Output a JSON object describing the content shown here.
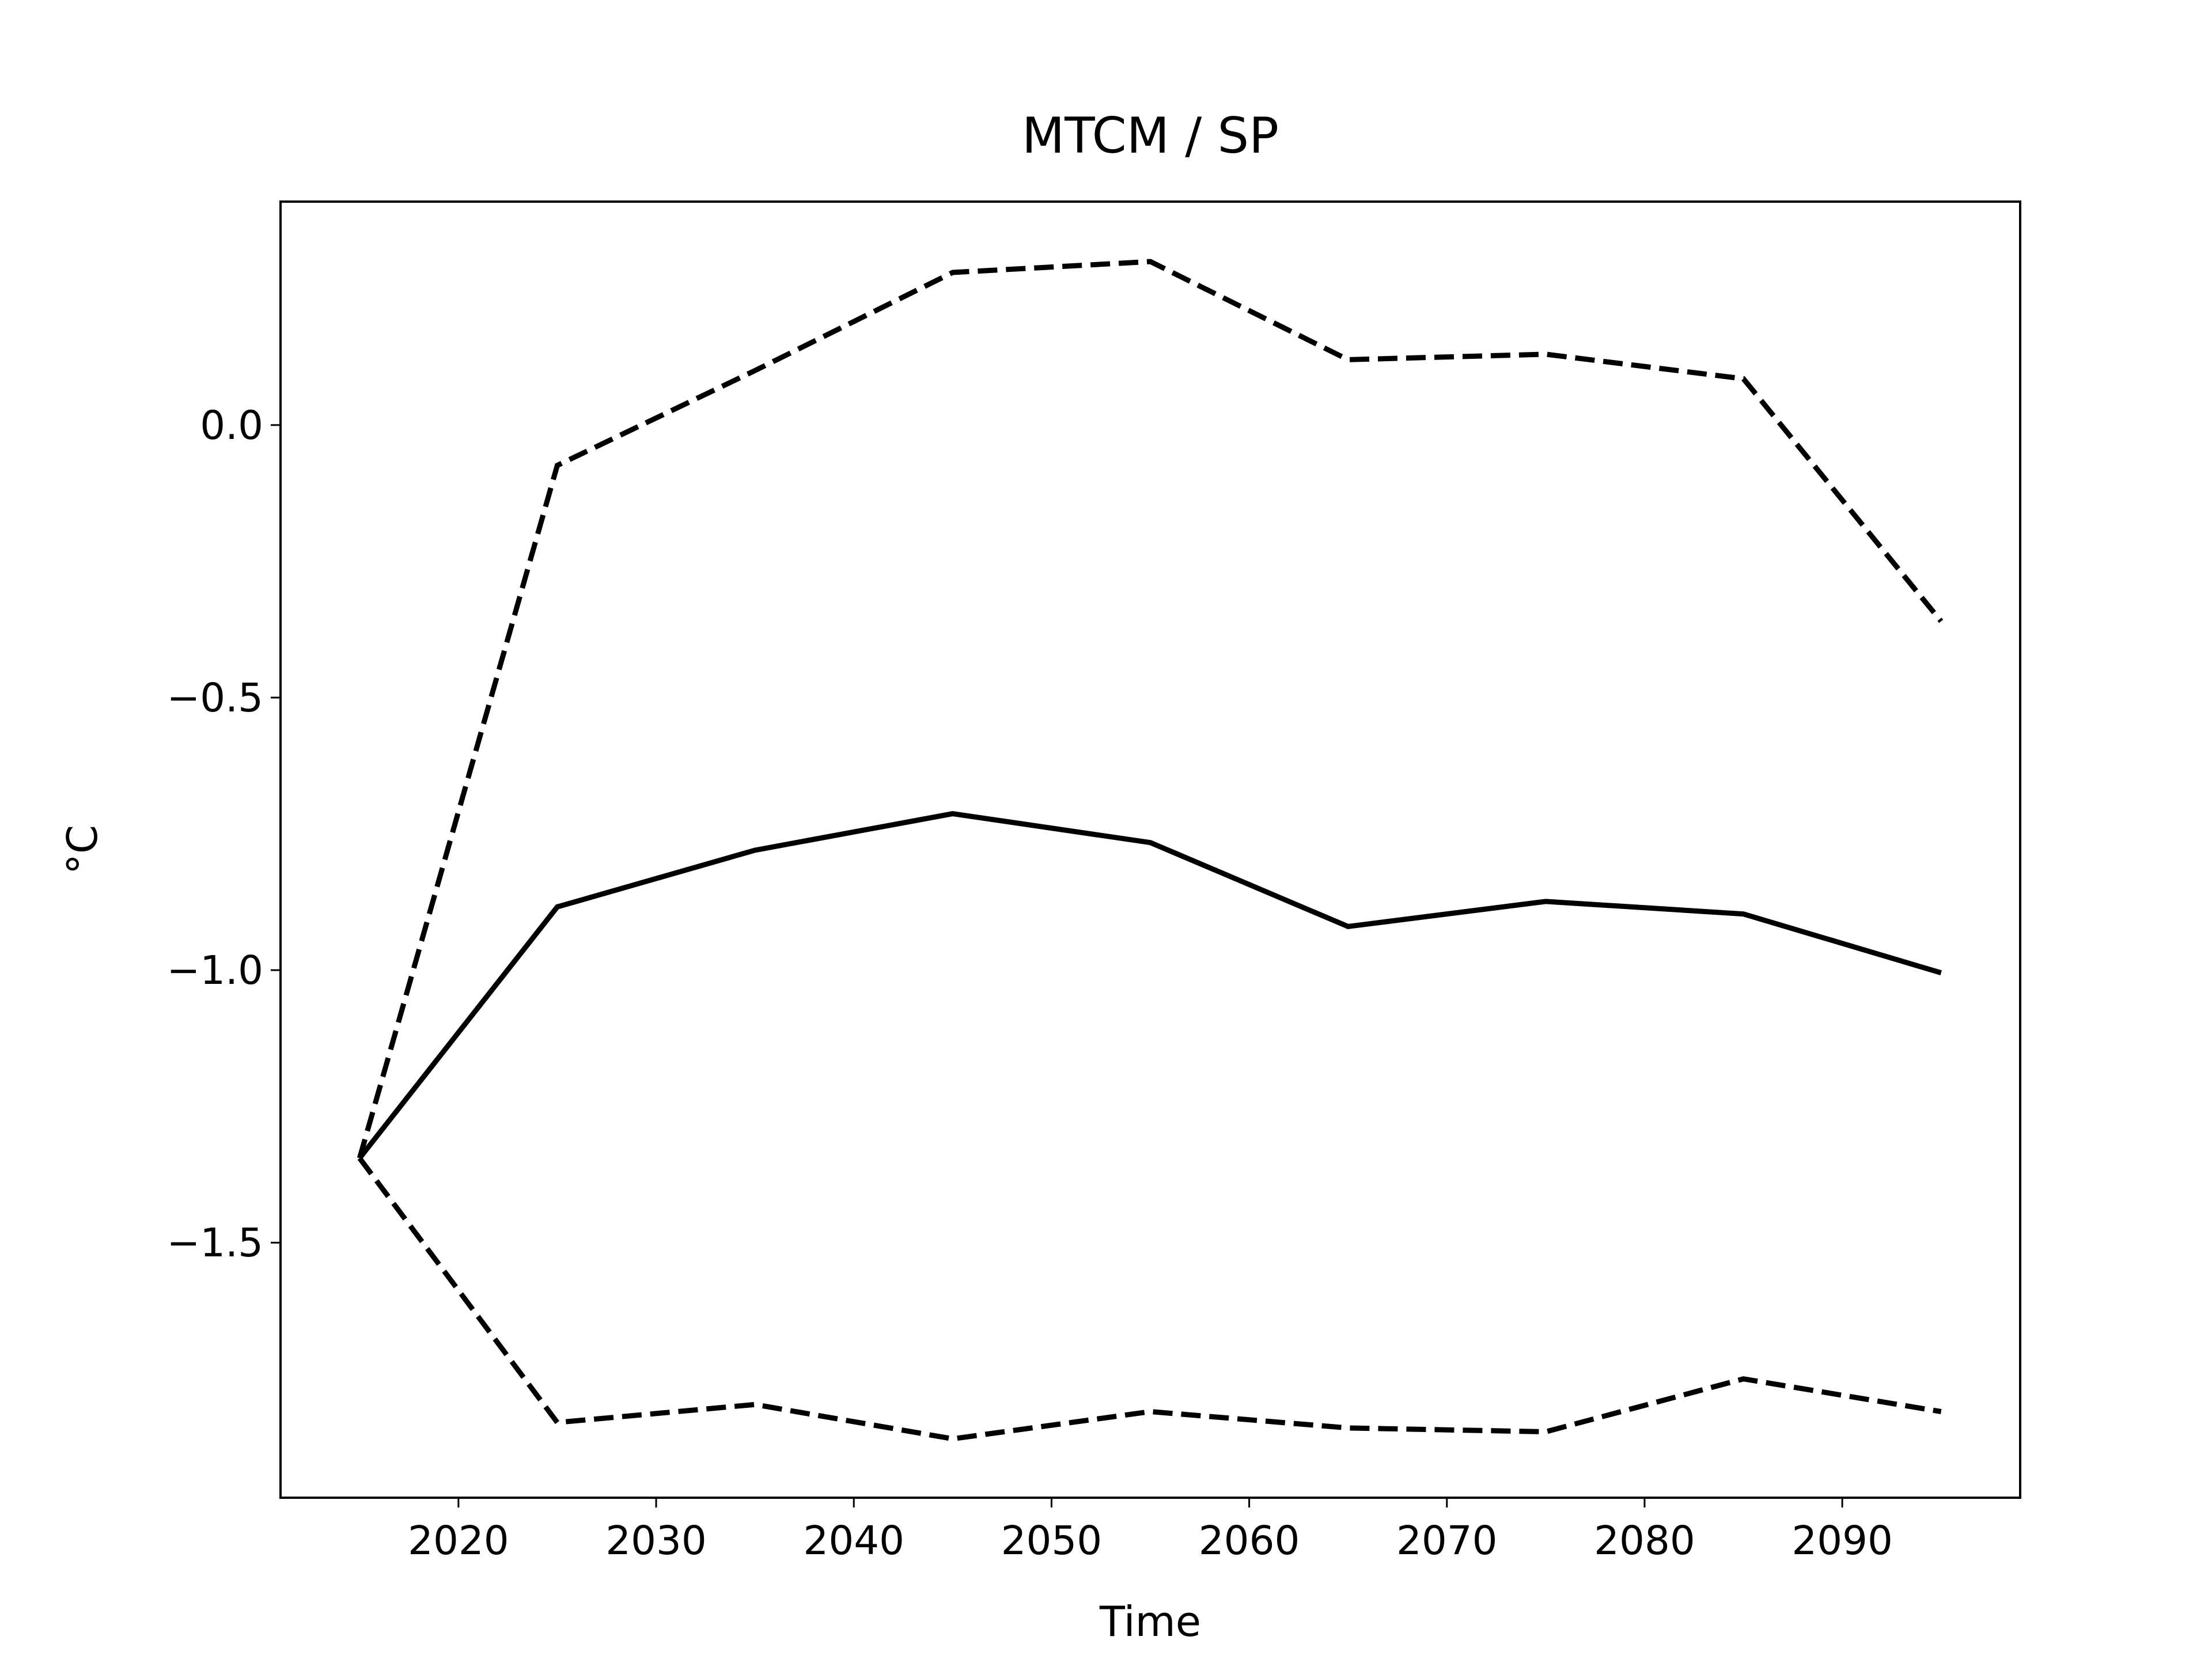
{
  "chart_data": {
    "type": "line",
    "title": "MTCM / SP",
    "xlabel": "Time",
    "ylabel": "°C",
    "x": [
      2015,
      2025,
      2035,
      2045,
      2055,
      2065,
      2075,
      2085,
      2095
    ],
    "series": [
      {
        "color": "#000000",
        "style": "solid",
        "values": [
          -1.345,
          -0.884,
          -0.78,
          -0.713,
          -0.766,
          -0.92,
          -0.874,
          -0.897,
          -1.005
        ]
      },
      {
        "color": "#000000",
        "style": "dashed",
        "values": [
          -1.345,
          -0.074,
          0.1,
          0.28,
          0.3,
          0.12,
          0.13,
          0.085,
          -0.36
        ]
      },
      {
        "color": "#000000",
        "style": "dashed",
        "values": [
          -1.345,
          -1.83,
          -1.797,
          -1.86,
          -1.81,
          -1.84,
          -1.847,
          -1.75,
          -1.81
        ]
      }
    ],
    "xlim": [
      2011,
      2099
    ],
    "xticks": [
      2020,
      2030,
      2040,
      2050,
      2060,
      2070,
      2080,
      2090
    ],
    "ylim": [
      -1.968,
      0.41
    ],
    "yticks": [
      {
        "value": -1.5,
        "label": "−1.5"
      },
      {
        "value": -1.0,
        "label": "−1.0"
      },
      {
        "value": -0.5,
        "label": "−0.5"
      },
      {
        "value": 0,
        "label": "0.0"
      }
    ],
    "grid": false
  }
}
